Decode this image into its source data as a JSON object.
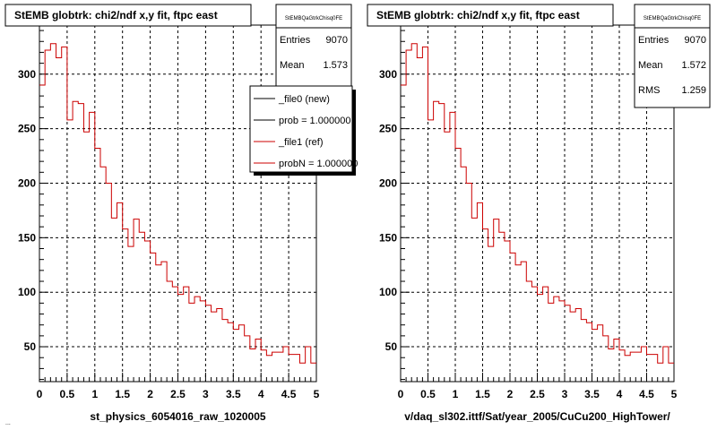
{
  "footer_fragment": "...",
  "chart_data": [
    {
      "type": "step",
      "title": "StEMB globtrk: chi2/ndf x,y fit, ftpc east",
      "xlabel": "st_physics_6054016_raw_1020005",
      "ylabel": "",
      "xlim": [
        0,
        5
      ],
      "ylim": [
        18,
        345
      ],
      "x_ticks": [
        "0",
        "0.5",
        "1",
        "1.5",
        "2",
        "2.5",
        "3",
        "3.5",
        "4",
        "4.5",
        "5"
      ],
      "y_ticks": [
        "50",
        "100",
        "150",
        "200",
        "250",
        "300"
      ],
      "grid": true,
      "stats": {
        "name": "StEMBQaGtrkChisq0FE",
        "rows": [
          {
            "label": "Entries",
            "value": "9070"
          },
          {
            "label": "Mean",
            "value": "1.573"
          }
        ]
      },
      "legend": {
        "placement": "top-right",
        "entries": [
          {
            "label": "_file0 (new)",
            "color": "#000000"
          },
          {
            "label": "prob = 1.000000",
            "color": "#000000"
          },
          {
            "label": "_file1 (ref)",
            "color": "#cc0000"
          },
          {
            "label": "probN = 1.000000",
            "color": "#cc0000"
          }
        ]
      },
      "bin_width": 0.1,
      "series": [
        {
          "name": "_file1 (ref)",
          "color": "#cc0000",
          "values": [
            290,
            322,
            328,
            315,
            325,
            258,
            275,
            273,
            247,
            265,
            232,
            215,
            200,
            168,
            182,
            158,
            142,
            167,
            155,
            147,
            136,
            125,
            128,
            110,
            105,
            98,
            105,
            90,
            96,
            92,
            88,
            82,
            85,
            75,
            72,
            66,
            70,
            60,
            48,
            57,
            47,
            42,
            45,
            45,
            50,
            43,
            43,
            35,
            50,
            35
          ]
        }
      ]
    },
    {
      "type": "step",
      "title": "StEMB globtrk: chi2/ndf x,y fit, ftpc east",
      "xlabel": "v/daq_sl302.ittf/Sat/year_2005/CuCu200_HighTower/",
      "ylabel": "",
      "xlim": [
        0,
        5
      ],
      "ylim": [
        18,
        345
      ],
      "x_ticks": [
        "0",
        "0.5",
        "1",
        "1.5",
        "2",
        "2.5",
        "3",
        "3.5",
        "4",
        "4.5",
        "5"
      ],
      "y_ticks": [
        "50",
        "100",
        "150",
        "200",
        "250",
        "300"
      ],
      "grid": true,
      "stats": {
        "name": "StEMBQaGtrkChisq0FE",
        "rows": [
          {
            "label": "Entries",
            "value": "9070"
          },
          {
            "label": "Mean",
            "value": "1.572"
          },
          {
            "label": "RMS",
            "value": "1.259"
          }
        ]
      },
      "bin_width": 0.1,
      "series": [
        {
          "name": "",
          "color": "#cc0000",
          "values": [
            290,
            322,
            328,
            315,
            325,
            258,
            275,
            273,
            247,
            265,
            232,
            215,
            200,
            168,
            182,
            158,
            142,
            167,
            155,
            147,
            136,
            125,
            128,
            110,
            105,
            98,
            105,
            90,
            96,
            92,
            88,
            82,
            85,
            75,
            72,
            66,
            70,
            60,
            48,
            57,
            47,
            42,
            45,
            45,
            50,
            43,
            43,
            35,
            50,
            35
          ]
        }
      ]
    }
  ]
}
